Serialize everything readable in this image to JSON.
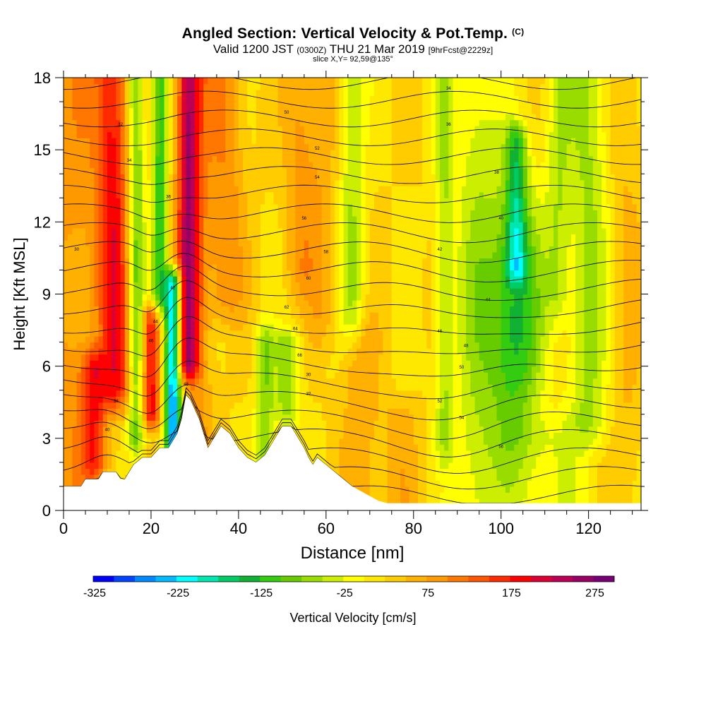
{
  "title": {
    "main": "Angled Section: Vertical Velocity & Pot.Temp.",
    "suffix": "(C)"
  },
  "subtitle": {
    "valid": "Valid 1200 JST",
    "utc": "(0300Z)",
    "date": "THU 21 Mar 2019",
    "forecast": "[9hrFcst@2229z]"
  },
  "slice_label": "slice X,Y= 92,59@135°",
  "chart_data": {
    "type": "heatmap",
    "xlabel": "Distance [nm]",
    "ylabel": "Height [Kft MSL]",
    "xlim": [
      0,
      132
    ],
    "ylim": [
      0,
      18
    ],
    "x_ticks": [
      0,
      20,
      40,
      60,
      80,
      100,
      120
    ],
    "y_ticks": [
      0,
      3,
      6,
      9,
      12,
      15,
      18
    ],
    "colorbar": {
      "label": "Vertical Velocity [cm/s]",
      "min": -325,
      "max": 300,
      "step": 25,
      "tick_labels": [
        -325,
        -225,
        -125,
        -25,
        75,
        175,
        275
      ],
      "colors": [
        "#0000ff",
        "#0044ff",
        "#0088ff",
        "#00bbff",
        "#00ffff",
        "#00e6b0",
        "#00cc66",
        "#11b233",
        "#33cc11",
        "#66cc00",
        "#99dd00",
        "#ccee00",
        "#ffff00",
        "#ffe800",
        "#ffcc00",
        "#ffb000",
        "#ff9900",
        "#ff7700",
        "#ff5500",
        "#ff2a00",
        "#ff0000",
        "#dd0033",
        "#bb0055",
        "#990066",
        "#770077"
      ]
    },
    "velocity_features": [
      {
        "x": 12,
        "ymin": 5,
        "ymax": 18,
        "value": 175
      },
      {
        "x": 20,
        "ymin": 4,
        "ymax": 8,
        "value": 175
      },
      {
        "x": 25,
        "ymin": 1.8,
        "ymax": 9.5,
        "value": -225
      },
      {
        "x": 28.5,
        "ymin": 6,
        "ymax": 18,
        "value": 200
      },
      {
        "x": 103,
        "ymin": 3,
        "ymax": 15.5,
        "value": -125
      },
      {
        "x": 66,
        "ymin": 8,
        "ymax": 18,
        "value": -75
      }
    ],
    "theta_contour_labels": [
      "30",
      "32",
      "34",
      "36",
      "38",
      "40",
      "42",
      "44",
      "46",
      "48",
      "50",
      "52",
      "54",
      "56",
      "58",
      "60",
      "62",
      "64",
      "66"
    ],
    "terrain": {
      "x": [
        0,
        4,
        5,
        8,
        9,
        12,
        13,
        14,
        16,
        18,
        20,
        22,
        24,
        26,
        27,
        28,
        29,
        30,
        31,
        32,
        33,
        34,
        35,
        36,
        38,
        40,
        42,
        44,
        46,
        48,
        50,
        52,
        54,
        55,
        56,
        57,
        58,
        60,
        62,
        64,
        66,
        68,
        70,
        72,
        74,
        132
      ],
      "y": [
        1.0,
        1.0,
        1.3,
        1.3,
        1.6,
        1.6,
        1.3,
        1.3,
        1.9,
        2.2,
        2.2,
        2.6,
        2.6,
        3.2,
        3.8,
        4.8,
        4.6,
        4.2,
        3.8,
        3.2,
        2.6,
        2.9,
        3.2,
        3.5,
        3.2,
        2.6,
        2.2,
        2.0,
        2.3,
        2.9,
        3.5,
        3.5,
        2.9,
        2.6,
        2.2,
        1.9,
        2.2,
        1.9,
        1.6,
        1.3,
        1.0,
        0.8,
        0.6,
        0.4,
        0.3,
        0.3
      ]
    }
  }
}
